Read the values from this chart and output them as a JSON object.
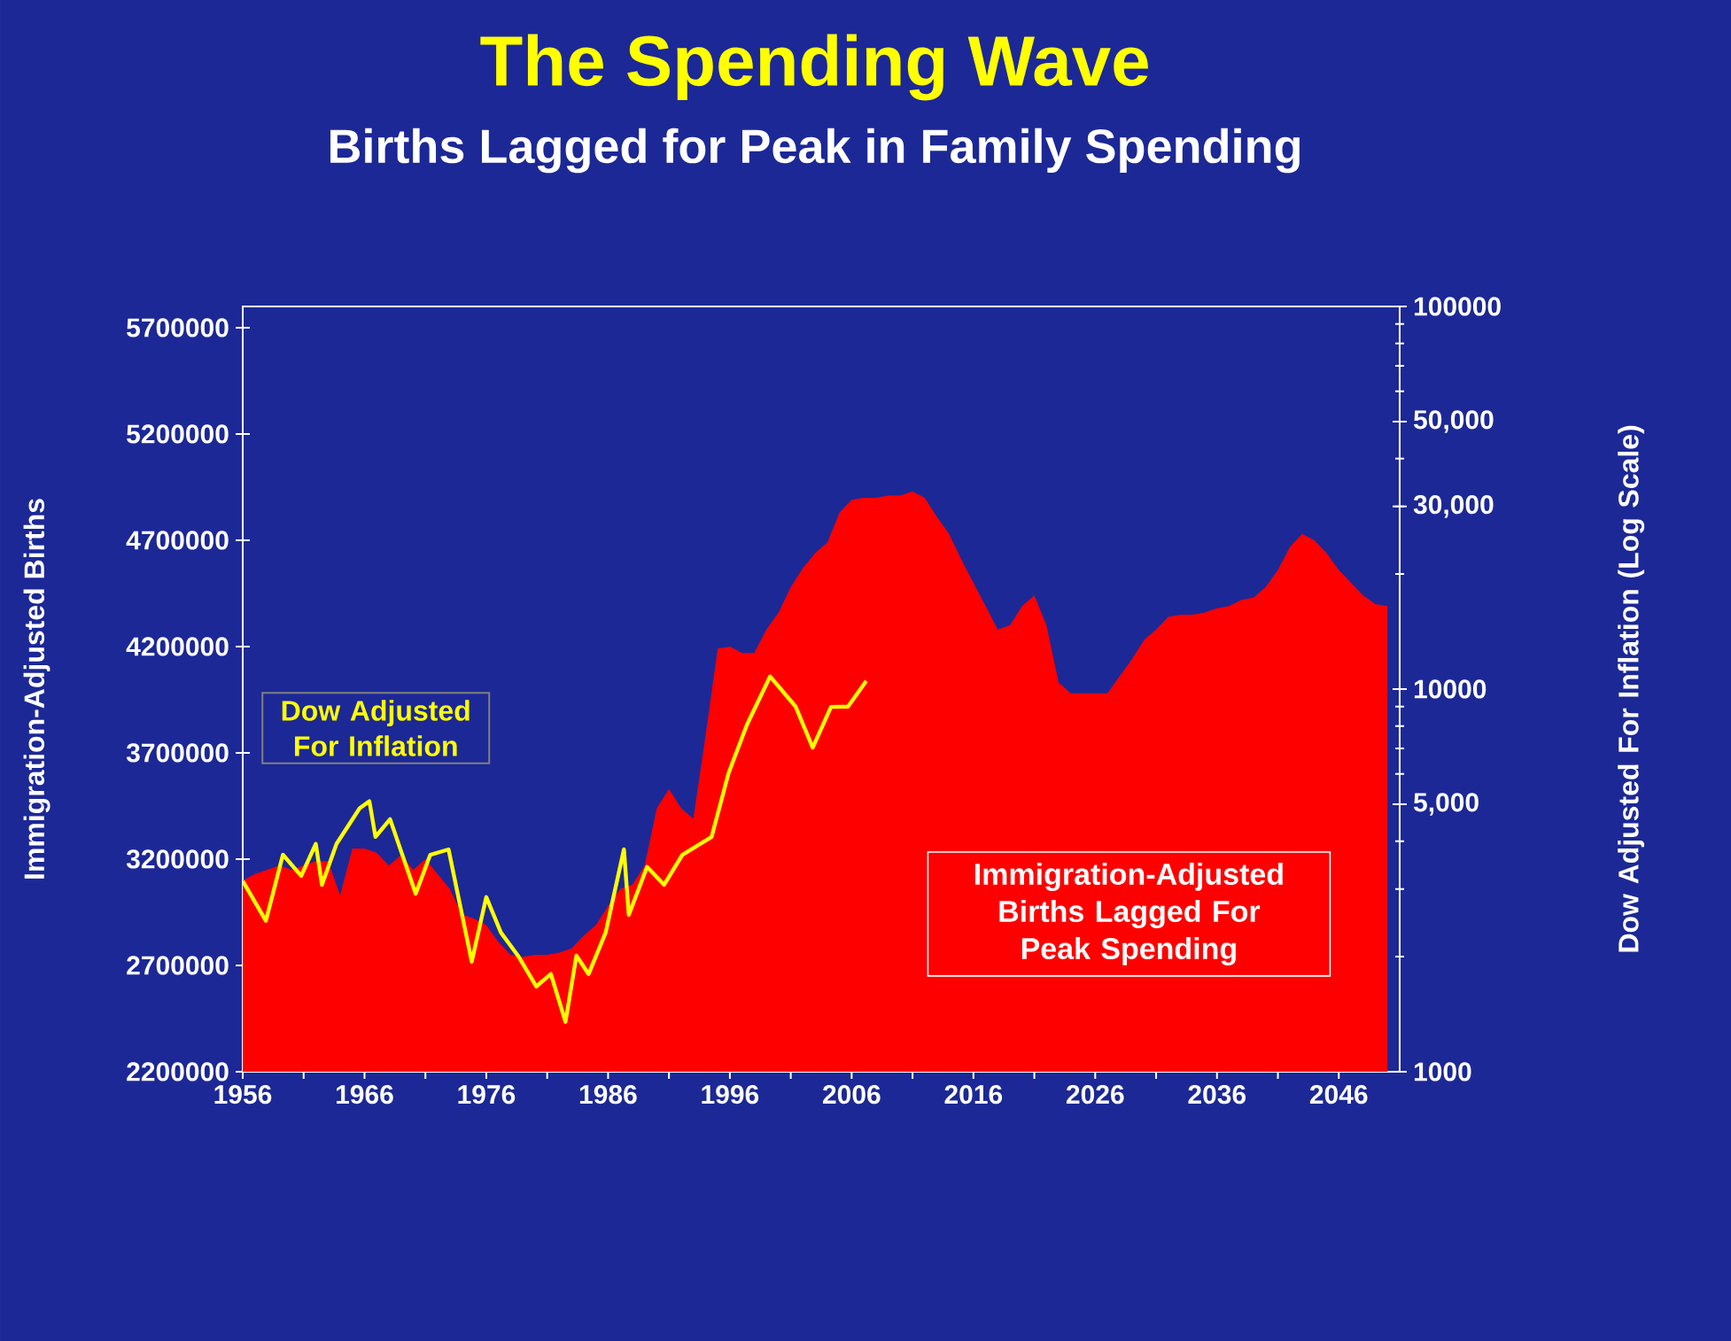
{
  "chart_data": {
    "type": "area",
    "title": "The Spending Wave",
    "subtitle": "Births Lagged for Peak in Family Spending",
    "ylabel": "Immigration-Adjusted Births",
    "y2label": "Dow Adjusted For Inflation (Log Scale)",
    "x": [
      1956,
      1957,
      1958,
      1959,
      1960,
      1961,
      1962,
      1963,
      1964,
      1965,
      1966,
      1967,
      1968,
      1969,
      1970,
      1971,
      1972,
      1973,
      1974,
      1975,
      1976,
      1977,
      1978,
      1979,
      1980,
      1981,
      1982,
      1983,
      1984,
      1985,
      1986,
      1987,
      1988,
      1989,
      1990,
      1991,
      1992,
      1993,
      1994,
      1995,
      1996,
      1997,
      1998,
      1999,
      2000,
      2001,
      2002,
      2003,
      2004,
      2005,
      2006,
      2007,
      2008,
      2009,
      2010,
      2011,
      2012,
      2013,
      2014,
      2015,
      2016,
      2017,
      2018,
      2019,
      2020,
      2021,
      2022,
      2023,
      2024,
      2025,
      2026,
      2027,
      2028,
      2029,
      2030,
      2031,
      2032,
      2033,
      2034,
      2035,
      2036,
      2037,
      2038,
      2039,
      2040,
      2041,
      2042,
      2043,
      2044,
      2045,
      2046,
      2047,
      2048,
      2049,
      2050
    ],
    "series": [
      {
        "name": "Immigration-Adjusted Births Lagged For Peak Spending",
        "color": "#ff0000",
        "values": [
          3100000,
          3130000,
          3150000,
          3170000,
          3150000,
          3170000,
          3190000,
          3190000,
          3030000,
          3250000,
          3250000,
          3230000,
          3170000,
          3220000,
          3150000,
          3200000,
          3130000,
          3060000,
          2940000,
          2920000,
          2890000,
          2810000,
          2750000,
          2740000,
          2750000,
          2750000,
          2760000,
          2780000,
          2840000,
          2890000,
          2980000,
          3060000,
          3080000,
          3170000,
          3440000,
          3530000,
          3440000,
          3390000,
          3780000,
          4190000,
          4200000,
          4170000,
          4170000,
          4280000,
          4360000,
          4480000,
          4570000,
          4640000,
          4690000,
          4830000,
          4890000,
          4900000,
          4900000,
          4910000,
          4910000,
          4930000,
          4900000,
          4810000,
          4730000,
          4610000,
          4500000,
          4390000,
          4280000,
          4300000,
          4390000,
          4440000,
          4300000,
          4030000,
          3980000,
          3980000,
          3980000,
          3980000,
          4060000,
          4140000,
          4230000,
          4280000,
          4340000,
          4350000,
          4350000,
          4360000,
          4380000,
          4390000,
          4420000,
          4430000,
          4480000,
          4560000,
          4670000,
          4730000,
          4700000,
          4640000,
          4560000,
          4500000,
          4440000,
          4400000,
          4390000
        ]
      },
      {
        "name": "Dow Adjusted For Inflation",
        "type": "line",
        "axis": "y2",
        "color": "#ffff00",
        "x": [
          1956.0,
          1957.9,
          1959.3,
          1960.8,
          1962.0,
          1962.5,
          1963.7,
          1965.6,
          1966.4,
          1966.9,
          1968.1,
          1970.2,
          1971.4,
          1972.9,
          1974.8,
          1976.0,
          1977.2,
          1978.6,
          1980.1,
          1981.3,
          1982.5,
          1983.4,
          1984.4,
          1985.8,
          1987.3,
          1987.7,
          1989.2,
          1990.6,
          1992.1,
          1994.5,
          1995.9,
          1997.4,
          1999.3,
          2001.4,
          2002.8,
          2004.3,
          2005.7,
          2007.2
        ],
        "values": [
          3150,
          2480,
          3690,
          3250,
          3940,
          3080,
          3940,
          4880,
          5090,
          4110,
          4570,
          2920,
          3690,
          3810,
          1940,
          2860,
          2310,
          2010,
          1670,
          1800,
          1350,
          2010,
          1800,
          2310,
          3810,
          2570,
          3430,
          3080,
          3690,
          4110,
          6040,
          8070,
          10790,
          9000,
          7030,
          8980,
          9000,
          10500
        ]
      }
    ],
    "xlim": [
      1956,
      2051
    ],
    "xticks": [
      1956,
      {
        "value": 1961,
        "label": null
      },
      1966,
      {
        "value": 1971,
        "label": null
      },
      1976,
      {
        "value": 1981,
        "label": null
      },
      1986,
      {
        "value": 1991,
        "label": null
      },
      1996,
      {
        "value": 2001,
        "label": null
      },
      2006,
      {
        "value": 2011,
        "label": null
      },
      2016,
      {
        "value": 2021,
        "label": null
      },
      2026,
      {
        "value": 2031,
        "label": null
      },
      2036,
      {
        "value": 2041,
        "label": null
      },
      2046
    ],
    "ylim": [
      2200000,
      5800000
    ],
    "yticks": [
      2200000,
      2700000,
      3200000,
      3700000,
      4200000,
      4700000,
      5200000,
      5700000
    ],
    "y2lim": [
      1000,
      100000
    ],
    "y2ticks": [
      1000,
      {
        "value": 5000,
        "label": "5,000"
      },
      10000,
      {
        "value": 30000,
        "label": "30,000"
      },
      {
        "value": 50000,
        "label": "50,000"
      },
      100000
    ],
    "log": "y2"
  }
}
